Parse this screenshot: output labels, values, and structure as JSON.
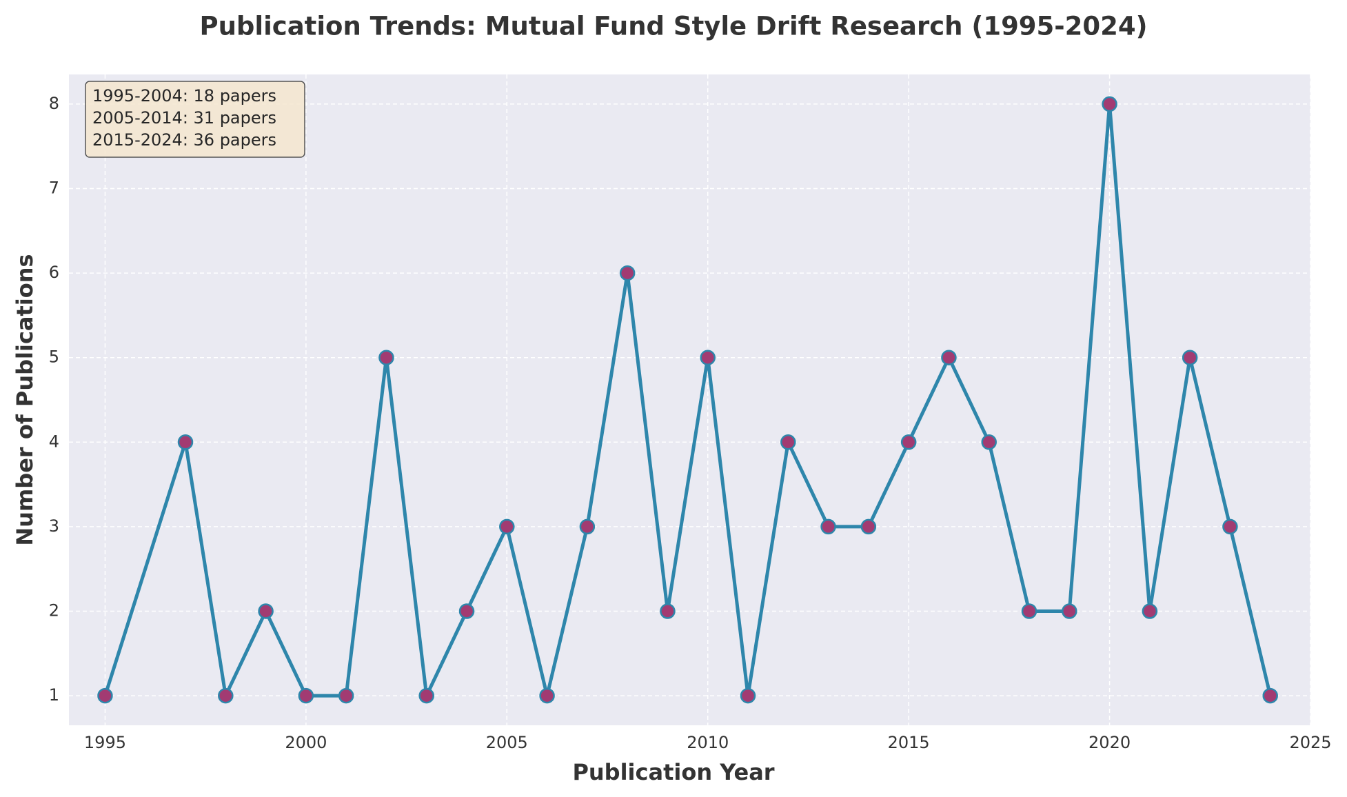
{
  "chart_data": {
    "type": "line",
    "title": "Publication Trends: Mutual Fund Style Drift Research (1995-2024)",
    "x_label": "Publication Year",
    "y_label": "Number of Publications",
    "annotation": [
      "1995-2004: 18 papers",
      "2005-2014: 31 papers",
      "2015-2024: 36 papers"
    ],
    "x": [
      1995,
      1997,
      1998,
      1999,
      2000,
      2001,
      2002,
      2003,
      2004,
      2005,
      2006,
      2007,
      2008,
      2009,
      2010,
      2011,
      2012,
      2013,
      2014,
      2015,
      2016,
      2017,
      2018,
      2019,
      2020,
      2021,
      2022,
      2023,
      2024
    ],
    "series": [
      {
        "name": "Publications",
        "color": "#2e86ab",
        "marker_color": "#a23b72",
        "values": [
          1,
          4,
          1,
          2,
          1,
          1,
          5,
          1,
          2,
          3,
          1,
          3,
          6,
          2,
          5,
          1,
          4,
          3,
          3,
          4,
          5,
          4,
          2,
          2,
          8,
          2,
          5,
          3,
          1
        ]
      }
    ],
    "xlim": [
      1994.1,
      2025
    ],
    "xticks": [
      1995,
      2000,
      2005,
      2010,
      2015,
      2020,
      2025
    ],
    "ylim": [
      0.65,
      8.35
    ],
    "yticks": [
      1,
      2,
      3,
      4,
      5,
      6,
      7,
      8
    ],
    "grid": true
  }
}
